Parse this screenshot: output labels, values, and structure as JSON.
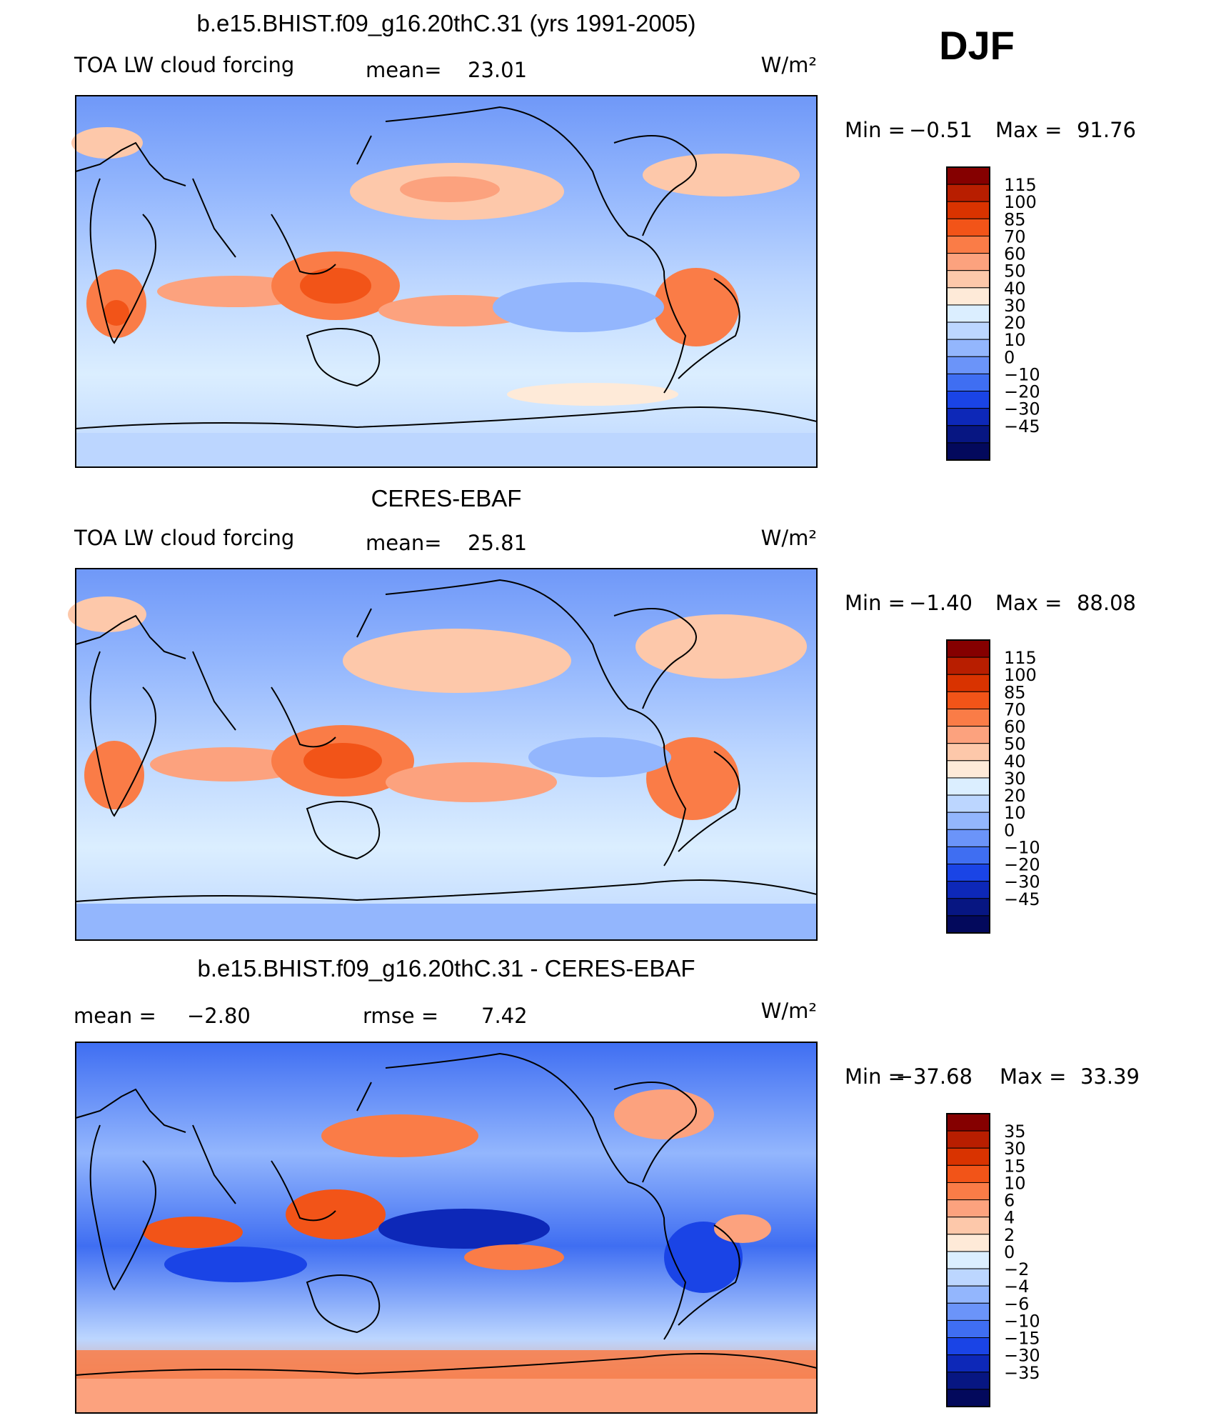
{
  "season": "DJF",
  "units": "W/m²",
  "chart_data": [
    {
      "type": "heatmap",
      "title": "b.e15.BHIST.f09_g16.20thC.31 (yrs 1991-2005)",
      "left_label": "TOA LW cloud forcing",
      "stat1": {
        "label": "mean=",
        "value": "23.01"
      },
      "stat2": null,
      "units": "W/m²",
      "min_label": "Min  =",
      "min_value": "−0.51",
      "max_label": "Max  =",
      "max_value": "91.76",
      "colorbar": {
        "levels": [
          "115",
          "100",
          "85",
          "70",
          "60",
          "50",
          "40",
          "30",
          "20",
          "10",
          "0",
          "−10",
          "−20",
          "−30",
          "−45"
        ],
        "colors": [
          "#850000",
          "#b81e00",
          "#d93300",
          "#f25418",
          "#fa7c47",
          "#fca27e",
          "#fdc8aa",
          "#feead8",
          "#dbeeff",
          "#bcd6ff",
          "#93b6fd",
          "#6b94f9",
          "#3f6ef2",
          "#1a44e6",
          "#0d28b8",
          "#071682",
          "#03095c"
        ]
      }
    },
    {
      "type": "heatmap",
      "title": "CERES-EBAF",
      "left_label": "TOA LW cloud forcing",
      "stat1": {
        "label": "mean=",
        "value": "25.81"
      },
      "stat2": null,
      "units": "W/m²",
      "min_label": "Min  =",
      "min_value": "−1.40",
      "max_label": "Max  =",
      "max_value": "88.08",
      "colorbar": {
        "levels": [
          "115",
          "100",
          "85",
          "70",
          "60",
          "50",
          "40",
          "30",
          "20",
          "10",
          "0",
          "−10",
          "−20",
          "−30",
          "−45"
        ],
        "colors": [
          "#850000",
          "#b81e00",
          "#d93300",
          "#f25418",
          "#fa7c47",
          "#fca27e",
          "#fdc8aa",
          "#feead8",
          "#dbeeff",
          "#bcd6ff",
          "#93b6fd",
          "#6b94f9",
          "#3f6ef2",
          "#1a44e6",
          "#0d28b8",
          "#071682",
          "#03095c"
        ]
      }
    },
    {
      "type": "heatmap",
      "title": "b.e15.BHIST.f09_g16.20thC.31 - CERES-EBAF",
      "left_label": "",
      "stat1": {
        "label": "mean  =",
        "value": "−2.80"
      },
      "stat2": {
        "label": "rmse  =",
        "value": "7.42"
      },
      "units": "W/m²",
      "min_label": "Min  =",
      "min_value": "−37.68",
      "max_label": "Max  =",
      "max_value": "33.39",
      "colorbar": {
        "levels": [
          "35",
          "30",
          "15",
          "10",
          "6",
          "4",
          "2",
          "0",
          "−2",
          "−4",
          "−6",
          "−10",
          "−15",
          "−30",
          "−35"
        ],
        "colors": [
          "#850000",
          "#b81e00",
          "#d93300",
          "#f25418",
          "#fa7c47",
          "#fca27e",
          "#fdc8aa",
          "#feead8",
          "#dbeeff",
          "#bcd6ff",
          "#93b6fd",
          "#6b94f9",
          "#3f6ef2",
          "#1a44e6",
          "#0d28b8",
          "#071682",
          "#03095c"
        ]
      }
    }
  ]
}
